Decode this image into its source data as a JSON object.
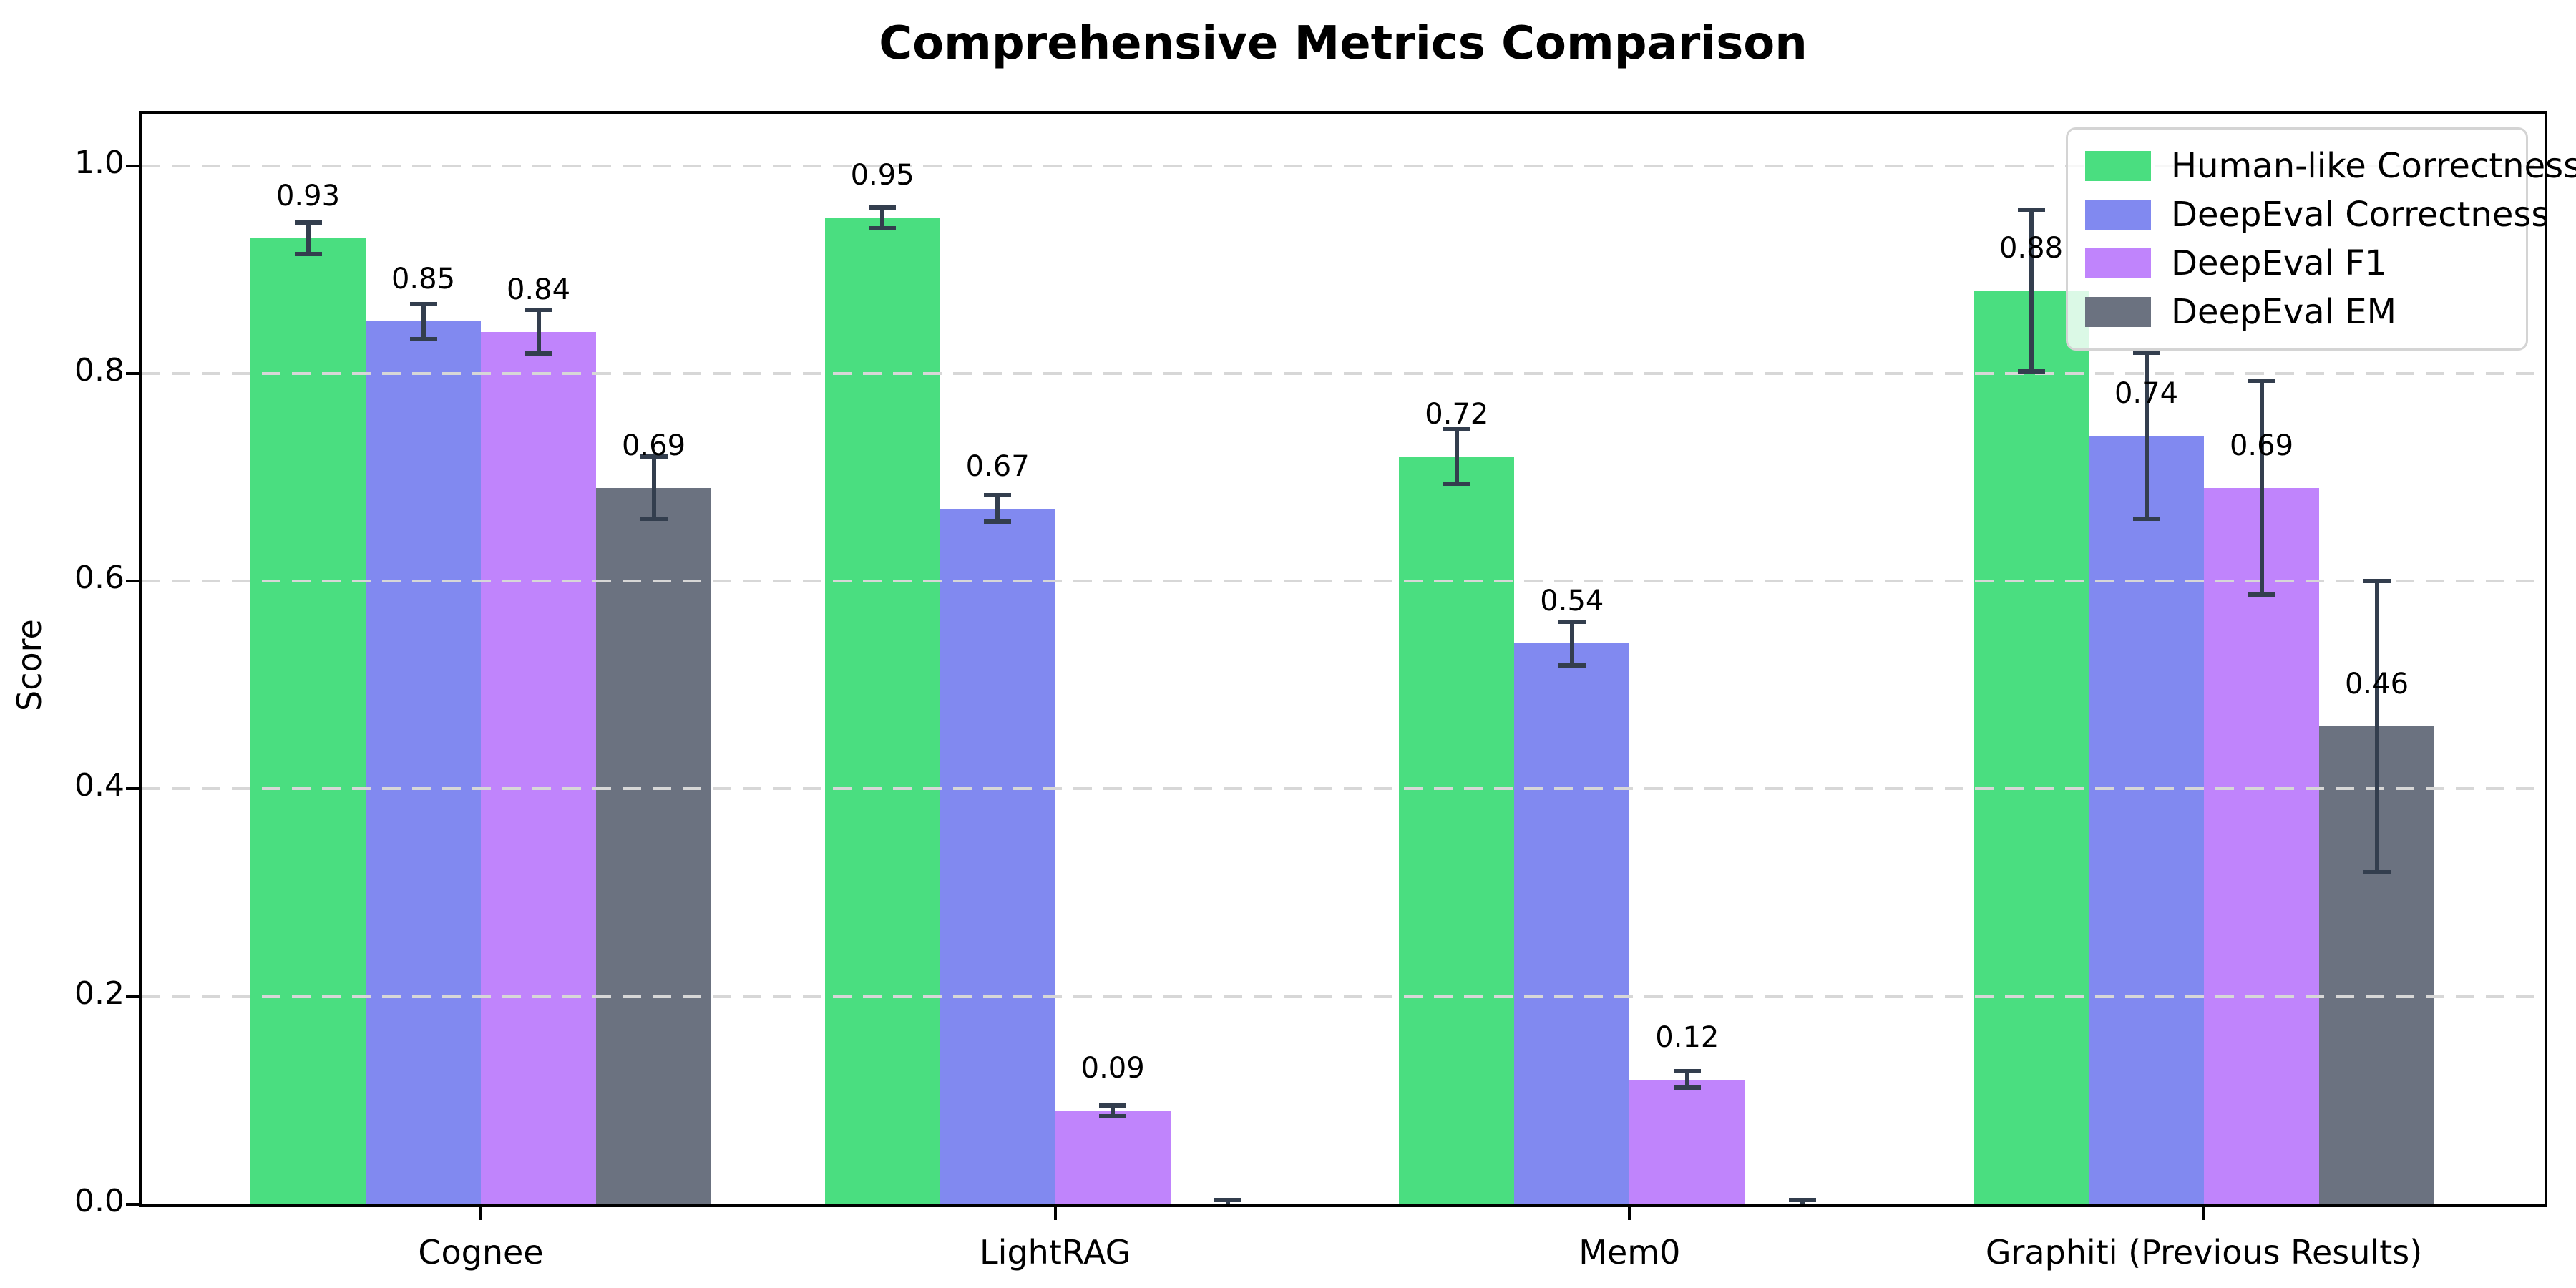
{
  "chart": {
    "title": "Comprehensive Metrics Comparison",
    "ylabel": "Score"
  },
  "chart_data": {
    "type": "bar",
    "title": "Comprehensive Metrics Comparison",
    "xlabel": "",
    "ylabel": "Score",
    "categories": [
      "Cognee",
      "LightRAG",
      "Mem0",
      "Graphiti (Previous Results)"
    ],
    "series": [
      {
        "name": "Human-like Correctness",
        "color": "#4ade80",
        "values": [
          0.93,
          0.95,
          0.72,
          0.88
        ],
        "errors": [
          0.015,
          0.01,
          0.026,
          0.078
        ],
        "labels": [
          "0.93",
          "0.95",
          "0.72",
          "0.88"
        ]
      },
      {
        "name": "DeepEval Correctness",
        "color": "#8189f0",
        "values": [
          0.85,
          0.67,
          0.54,
          0.74
        ],
        "errors": [
          0.017,
          0.013,
          0.021,
          0.08
        ],
        "labels": [
          "0.85",
          "0.67",
          "0.54",
          "0.74"
        ]
      },
      {
        "name": "DeepEval F1",
        "color": "#c084fc",
        "values": [
          0.84,
          0.09,
          0.12,
          0.69
        ],
        "errors": [
          0.021,
          0.005,
          0.008,
          0.103
        ],
        "labels": [
          "0.84",
          "0.09",
          "0.12",
          "0.69"
        ]
      },
      {
        "name": "DeepEval EM",
        "color": "#6b7280",
        "values": [
          0.69,
          0.0,
          0.0,
          0.46
        ],
        "errors": [
          0.03,
          0.004,
          0.004,
          0.14
        ],
        "labels": [
          "0.69",
          "",
          "",
          "0.46"
        ]
      }
    ],
    "yticks": [
      0.0,
      0.2,
      0.4,
      0.6,
      0.8,
      1.0
    ],
    "ytick_labels": [
      "0.0",
      "0.2",
      "0.4",
      "0.6",
      "0.8",
      "1.0"
    ],
    "ylim": [
      0,
      1.05
    ],
    "grid": "horizontal-dashed",
    "grid_above_bars": true,
    "legend_position": "upper-right",
    "errorbar_color": "#333e4e"
  }
}
